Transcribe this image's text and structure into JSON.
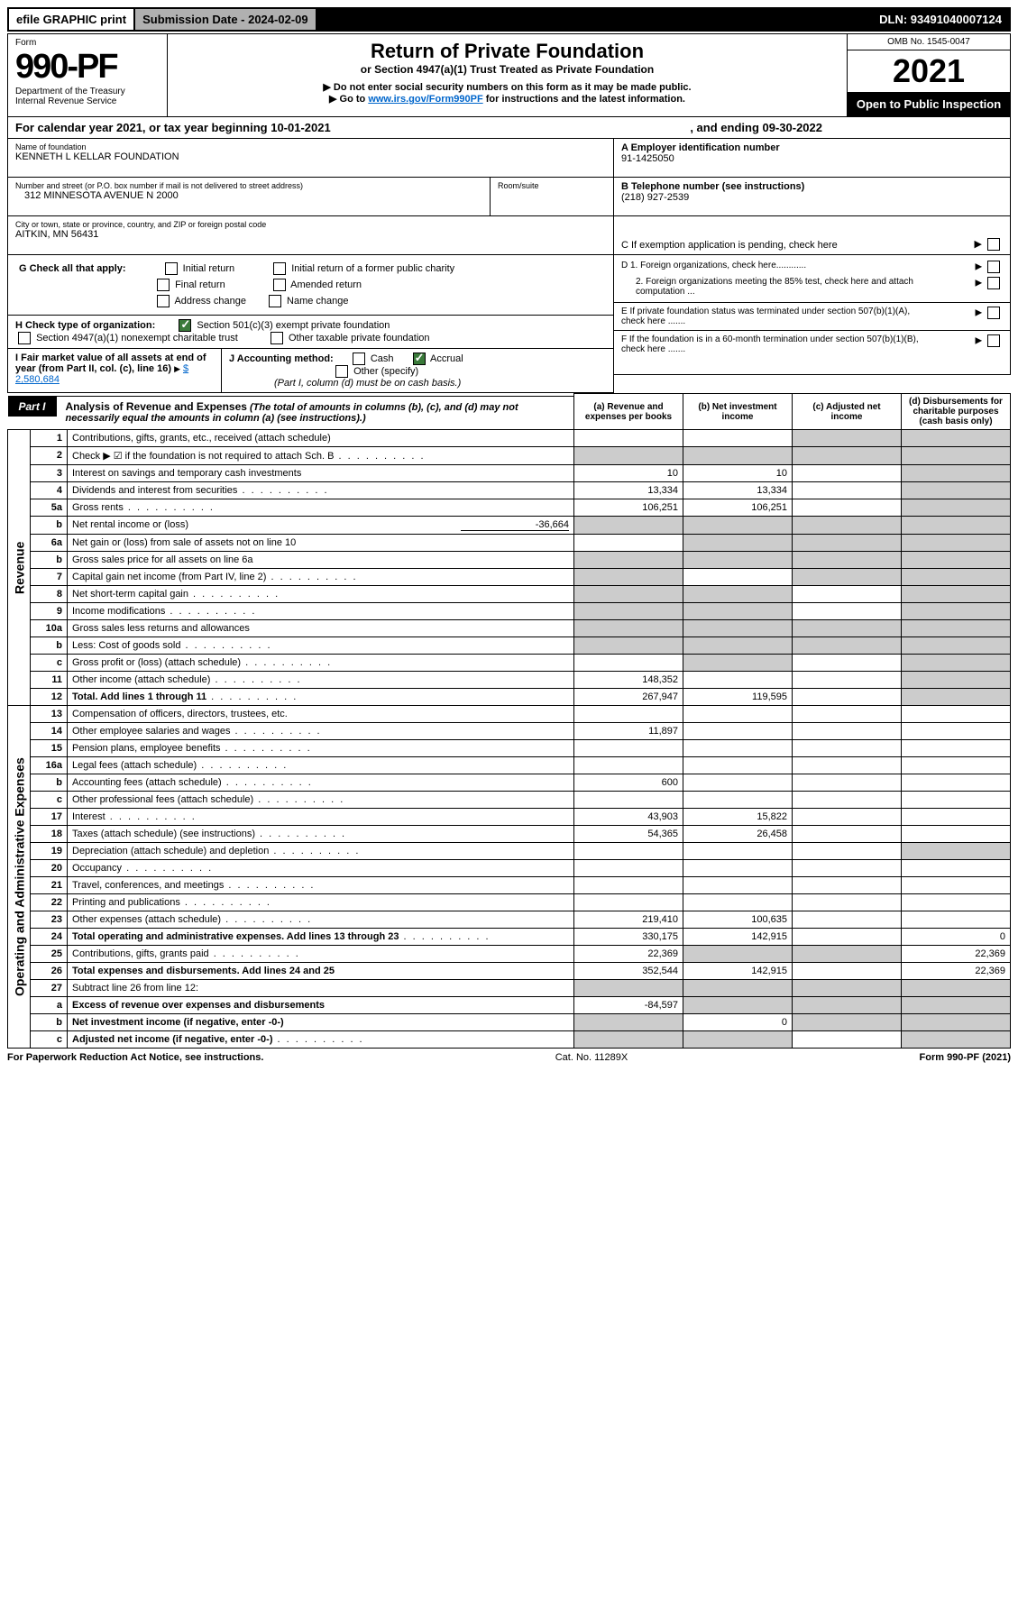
{
  "topbar": {
    "efile": "efile GRAPHIC print",
    "subdate_label": "Submission Date - 2024-02-09",
    "dln": "DLN: 93491040007124"
  },
  "header": {
    "form_word": "Form",
    "form_number": "990-PF",
    "dept": "Department of the Treasury",
    "irs": "Internal Revenue Service",
    "title": "Return of Private Foundation",
    "subtitle": "or Section 4947(a)(1) Trust Treated as Private Foundation",
    "note1": "▶ Do not enter social security numbers on this form as it may be made public.",
    "note2_prefix": "▶ Go to ",
    "note2_link": "www.irs.gov/Form990PF",
    "note2_suffix": " for instructions and the latest information.",
    "omb": "OMB No. 1545-0047",
    "year": "2021",
    "open": "Open to Public Inspection"
  },
  "calendar": {
    "text": "For calendar year 2021, or tax year beginning 10-01-2021",
    "ending": ", and ending 09-30-2022"
  },
  "foundation": {
    "name_label": "Name of foundation",
    "name": "KENNETH L KELLAR FOUNDATION",
    "addr_label": "Number and street (or P.O. box number if mail is not delivered to street address)",
    "addr": "312 MINNESOTA AVENUE N 2000",
    "room_label": "Room/suite",
    "city_label": "City or town, state or province, country, and ZIP or foreign postal code",
    "city": "AITKIN, MN  56431"
  },
  "right_info": {
    "a_label": "A Employer identification number",
    "a_val": "91-1425050",
    "b_label": "B Telephone number (see instructions)",
    "b_val": "(218) 927-2539",
    "c_label": "C If exemption application is pending, check here",
    "d1": "D 1. Foreign organizations, check here............",
    "d2": "2. Foreign organizations meeting the 85% test, check here and attach computation ...",
    "e": "E  If private foundation status was terminated under section 507(b)(1)(A), check here .......",
    "f": "F  If the foundation is in a 60-month termination under section 507(b)(1)(B), check here ......."
  },
  "g": {
    "label": "G Check all that apply:",
    "o1": "Initial return",
    "o2": "Initial return of a former public charity",
    "o3": "Final return",
    "o4": "Amended return",
    "o5": "Address change",
    "o6": "Name change"
  },
  "h": {
    "label": "H Check type of organization:",
    "o1": "Section 501(c)(3) exempt private foundation",
    "o2": "Section 4947(a)(1) nonexempt charitable trust",
    "o3": "Other taxable private foundation"
  },
  "i": {
    "label": "I Fair market value of all assets at end of year (from Part II, col. (c), line 16)",
    "val": "$  2,580,684"
  },
  "j": {
    "label": "J Accounting method:",
    "cash": "Cash",
    "accrual": "Accrual",
    "other": "Other (specify)",
    "note": "(Part I, column (d) must be on cash basis.)"
  },
  "part1": {
    "badge": "Part I",
    "title": "Analysis of Revenue and Expenses",
    "title_note": "(The total of amounts in columns (b), (c), and (d) may not necessarily equal the amounts in column (a) (see instructions).)",
    "col_a": "(a)  Revenue and expenses per books",
    "col_b": "(b)  Net investment income",
    "col_c": "(c)  Adjusted net income",
    "col_d": "(d)  Disbursements for charitable purposes (cash basis only)",
    "vert_rev": "Revenue",
    "vert_exp": "Operating and Administrative Expenses"
  },
  "rows": [
    {
      "n": "1",
      "d": "Contributions, gifts, grants, etc., received (attach schedule)",
      "a": "",
      "b": "",
      "c": "s",
      "dd": "s"
    },
    {
      "n": "2",
      "d": "Check ▶ ☑ if the foundation is not required to attach Sch. B",
      "dots": true,
      "a": "s",
      "b": "s",
      "c": "s",
      "dd": "s"
    },
    {
      "n": "3",
      "d": "Interest on savings and temporary cash investments",
      "a": "10",
      "b": "10",
      "c": "",
      "dd": "s"
    },
    {
      "n": "4",
      "d": "Dividends and interest from securities",
      "dots": true,
      "a": "13,334",
      "b": "13,334",
      "c": "",
      "dd": "s"
    },
    {
      "n": "5a",
      "d": "Gross rents",
      "dots": true,
      "a": "106,251",
      "b": "106,251",
      "c": "",
      "dd": "s"
    },
    {
      "n": "b",
      "d": "Net rental income or (loss)",
      "extra": "-36,664",
      "a": "s",
      "b": "s",
      "c": "s",
      "dd": "s"
    },
    {
      "n": "6a",
      "d": "Net gain or (loss) from sale of assets not on line 10",
      "a": "",
      "b": "s",
      "c": "s",
      "dd": "s"
    },
    {
      "n": "b",
      "d": "Gross sales price for all assets on line 6a",
      "under": true,
      "a": "s",
      "b": "s",
      "c": "s",
      "dd": "s"
    },
    {
      "n": "7",
      "d": "Capital gain net income (from Part IV, line 2)",
      "dots": true,
      "a": "s",
      "b": "",
      "c": "s",
      "dd": "s"
    },
    {
      "n": "8",
      "d": "Net short-term capital gain",
      "dots": true,
      "a": "s",
      "b": "s",
      "c": "",
      "dd": "s"
    },
    {
      "n": "9",
      "d": "Income modifications",
      "dots": true,
      "a": "s",
      "b": "s",
      "c": "",
      "dd": "s"
    },
    {
      "n": "10a",
      "d": "Gross sales less returns and allowances",
      "box": true,
      "a": "s",
      "b": "s",
      "c": "s",
      "dd": "s"
    },
    {
      "n": "b",
      "d": "Less: Cost of goods sold",
      "dots": true,
      "box": true,
      "a": "s",
      "b": "s",
      "c": "s",
      "dd": "s"
    },
    {
      "n": "c",
      "d": "Gross profit or (loss) (attach schedule)",
      "dots": true,
      "a": "",
      "b": "s",
      "c": "",
      "dd": "s"
    },
    {
      "n": "11",
      "d": "Other income (attach schedule)",
      "dots": true,
      "a": "148,352",
      "b": "",
      "c": "",
      "dd": "s"
    },
    {
      "n": "12",
      "d": "Total. Add lines 1 through 11",
      "dots": true,
      "bold": true,
      "a": "267,947",
      "b": "119,595",
      "c": "",
      "dd": "s"
    }
  ],
  "exp_rows": [
    {
      "n": "13",
      "d": "Compensation of officers, directors, trustees, etc.",
      "a": "",
      "b": "",
      "c": "",
      "dd": ""
    },
    {
      "n": "14",
      "d": "Other employee salaries and wages",
      "dots": true,
      "a": "11,897",
      "b": "",
      "c": "",
      "dd": ""
    },
    {
      "n": "15",
      "d": "Pension plans, employee benefits",
      "dots": true,
      "a": "",
      "b": "",
      "c": "",
      "dd": ""
    },
    {
      "n": "16a",
      "d": "Legal fees (attach schedule)",
      "dots": true,
      "a": "",
      "b": "",
      "c": "",
      "dd": ""
    },
    {
      "n": "b",
      "d": "Accounting fees (attach schedule)",
      "dots": true,
      "a": "600",
      "b": "",
      "c": "",
      "dd": ""
    },
    {
      "n": "c",
      "d": "Other professional fees (attach schedule)",
      "dots": true,
      "a": "",
      "b": "",
      "c": "",
      "dd": ""
    },
    {
      "n": "17",
      "d": "Interest",
      "dots": true,
      "a": "43,903",
      "b": "15,822",
      "c": "",
      "dd": ""
    },
    {
      "n": "18",
      "d": "Taxes (attach schedule) (see instructions)",
      "dots": true,
      "a": "54,365",
      "b": "26,458",
      "c": "",
      "dd": ""
    },
    {
      "n": "19",
      "d": "Depreciation (attach schedule) and depletion",
      "dots": true,
      "a": "",
      "b": "",
      "c": "",
      "dd": "s"
    },
    {
      "n": "20",
      "d": "Occupancy",
      "dots": true,
      "a": "",
      "b": "",
      "c": "",
      "dd": ""
    },
    {
      "n": "21",
      "d": "Travel, conferences, and meetings",
      "dots": true,
      "a": "",
      "b": "",
      "c": "",
      "dd": ""
    },
    {
      "n": "22",
      "d": "Printing and publications",
      "dots": true,
      "a": "",
      "b": "",
      "c": "",
      "dd": ""
    },
    {
      "n": "23",
      "d": "Other expenses (attach schedule)",
      "dots": true,
      "a": "219,410",
      "b": "100,635",
      "c": "",
      "dd": ""
    },
    {
      "n": "24",
      "d": "Total operating and administrative expenses. Add lines 13 through 23",
      "dots": true,
      "bold": true,
      "a": "330,175",
      "b": "142,915",
      "c": "",
      "dd": "0"
    },
    {
      "n": "25",
      "d": "Contributions, gifts, grants paid",
      "dots": true,
      "a": "22,369",
      "b": "s",
      "c": "s",
      "dd": "22,369"
    },
    {
      "n": "26",
      "d": "Total expenses and disbursements. Add lines 24 and 25",
      "bold": true,
      "a": "352,544",
      "b": "142,915",
      "c": "",
      "dd": "22,369"
    }
  ],
  "bottom_rows": [
    {
      "n": "27",
      "d": "Subtract line 26 from line 12:",
      "a": "s",
      "b": "s",
      "c": "s",
      "dd": "s"
    },
    {
      "n": "a",
      "d": "Excess of revenue over expenses and disbursements",
      "bold": true,
      "a": "-84,597",
      "b": "s",
      "c": "s",
      "dd": "s"
    },
    {
      "n": "b",
      "d": "Net investment income (if negative, enter -0-)",
      "bold": true,
      "a": "s",
      "b": "0",
      "c": "s",
      "dd": "s"
    },
    {
      "n": "c",
      "d": "Adjusted net income (if negative, enter -0-)",
      "dots": true,
      "bold": true,
      "a": "s",
      "b": "s",
      "c": "",
      "dd": "s"
    }
  ],
  "footer": {
    "left": "For Paperwork Reduction Act Notice, see instructions.",
    "center": "Cat. No. 11289X",
    "right": "Form 990-PF (2021)"
  }
}
